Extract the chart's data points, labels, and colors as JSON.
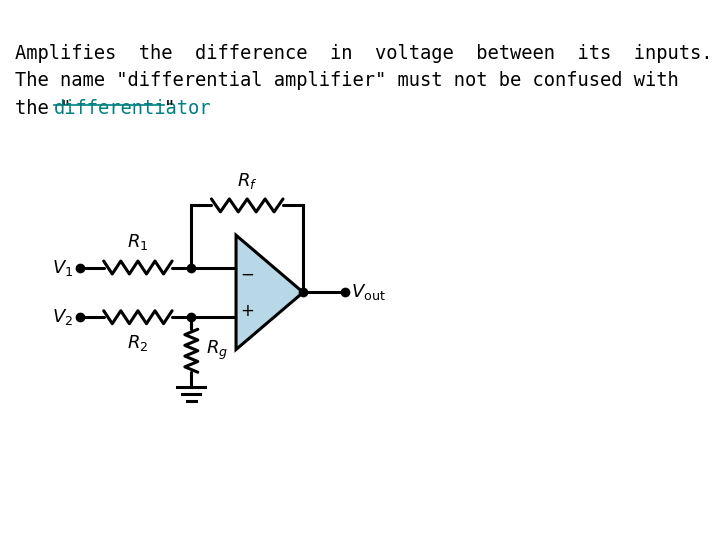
{
  "bg_color": "#ffffff",
  "text_line1": "Amplifies  the  difference  in  voltage  between  its  inputs.",
  "text_line2": "The name \"differential amplifier\" must not be confused with",
  "text_line3_pre": "the \"",
  "text_link": "differentiator",
  "text_line3_post": "\"",
  "text_color": "#000000",
  "link_color": "#008080",
  "text_fontsize": 13.5,
  "circuit": {
    "lw": 2.2,
    "wire_color": "#000000",
    "opamp_fill": "#b8d8e8",
    "opamp_outline": "#000000",
    "node_color": "#000000"
  }
}
